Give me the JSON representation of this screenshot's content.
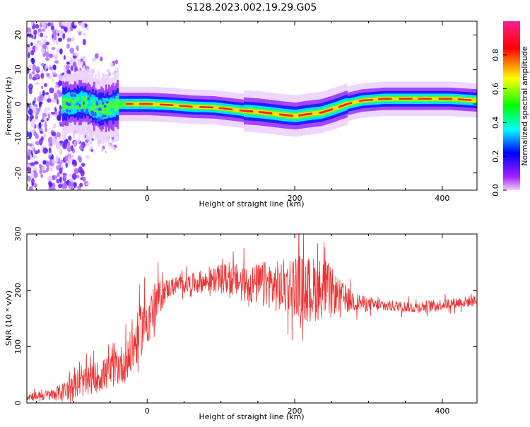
{
  "figure": {
    "title": "S128.2023.002.19.29.G05"
  },
  "chart_data": [
    {
      "type": "heatmap",
      "title": "S128.2023.002.19.29.G05",
      "xlabel": "Height of straight line (km)",
      "ylabel": "Frequency (Hz)",
      "xlim": [
        -163,
        447
      ],
      "ylim": [
        -25,
        24
      ],
      "x_ticks": [
        0,
        200,
        400
      ],
      "y_ticks": [
        -20,
        -10,
        0,
        10,
        20
      ],
      "grid": false,
      "colorbar": {
        "label": "Normalized spectral amplitude",
        "range": [
          0,
          1
        ],
        "ticks": [
          0.0,
          0.2,
          0.4,
          0.6,
          0.8
        ],
        "colormap": [
          "#ff2090",
          "#ff0000",
          "#ffff00",
          "#00ff00",
          "#00ffff",
          "#0000ff",
          "#8000ff",
          "#f0d0ff"
        ]
      },
      "ridge": {
        "x": [
          -115,
          -85,
          -65,
          -48,
          -40,
          -25,
          0,
          30,
          60,
          90,
          110,
          130,
          150,
          170,
          185,
          200,
          215,
          235,
          250,
          270,
          290,
          320,
          350,
          380,
          410,
          447
        ],
        "y": [
          0,
          0.5,
          -1.5,
          -1,
          0,
          0,
          0,
          -0.3,
          -0.8,
          -1,
          -1.5,
          -2,
          -2.3,
          -2.8,
          -3.2,
          -3.5,
          -3,
          -2.5,
          -1.5,
          0,
          1,
          1.5,
          1.5,
          1.5,
          1.5,
          1
        ]
      }
    },
    {
      "type": "line",
      "xlabel": "Height of straight line (km)",
      "ylabel": "SNR (10 * v/v)",
      "xlim": [
        -163,
        447
      ],
      "ylim": [
        0,
        300
      ],
      "x_ticks": [
        0,
        200,
        400
      ],
      "y_ticks": [
        0,
        100,
        200,
        300
      ],
      "grid": false,
      "series": [
        {
          "color": "#ee3333",
          "envelope": {
            "x": [
              -163,
              -130,
              -110,
              -90,
              -70,
              -50,
              -35,
              -25,
              -15,
              -5,
              5,
              15,
              25,
              40,
              60,
              80,
              100,
              120,
              140,
              160,
              180,
              200,
              220,
              240,
              260,
              280,
              300,
              320,
              340,
              360,
              380,
              400,
              420,
              447
            ],
            "mean": [
              12,
              14,
              22,
              35,
              45,
              55,
              68,
              80,
              110,
              140,
              160,
              185,
              200,
              210,
              212,
              215,
              222,
              218,
              210,
              212,
              205,
              212,
              200,
              205,
              190,
              180,
              175,
              172,
              172,
              170,
              172,
              175,
              178,
              182
            ],
            "spread": [
              8,
              10,
              18,
              25,
              28,
              30,
              35,
              40,
              45,
              50,
              45,
              35,
              20,
              15,
              18,
              20,
              25,
              30,
              35,
              40,
              48,
              55,
              60,
              55,
              30,
              18,
              12,
              10,
              10,
              10,
              10,
              10,
              10,
              10
            ]
          }
        }
      ]
    }
  ]
}
